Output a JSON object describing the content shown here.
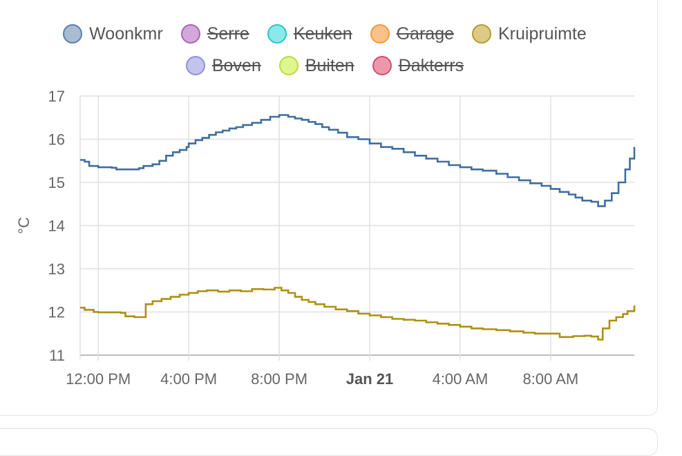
{
  "chart_data": {
    "type": "line",
    "ylabel": "°C",
    "ylim": [
      11,
      17
    ],
    "yticks": [
      "11",
      "12",
      "13",
      "14",
      "15",
      "16",
      "17"
    ],
    "x_range_hours": [
      -0.8,
      23.7
    ],
    "xticks": [
      {
        "label": "12:00 PM",
        "hour": 0,
        "bold": false
      },
      {
        "label": "4:00 PM",
        "hour": 4,
        "bold": false
      },
      {
        "label": "8:00 PM",
        "hour": 8,
        "bold": false
      },
      {
        "label": "Jan 21",
        "hour": 12,
        "bold": true
      },
      {
        "label": "4:00 AM",
        "hour": 16,
        "bold": false
      },
      {
        "label": "8:00 AM",
        "hour": 20,
        "bold": false
      }
    ],
    "grid": true,
    "legend_position": "top-center",
    "legend": [
      {
        "name": "Woonkmr",
        "color": "#5b7fa6",
        "fill": "#a8bcd3",
        "hidden": false
      },
      {
        "name": "Serre",
        "color": "#a765b6",
        "fill": "#d4a8dc",
        "hidden": true
      },
      {
        "name": "Keuken",
        "color": "#27c6cb",
        "fill": "#8ee8ea",
        "hidden": true
      },
      {
        "name": "Garage",
        "color": "#f39a3e",
        "fill": "#fbc189",
        "hidden": true
      },
      {
        "name": "Kruipruimte",
        "color": "#b69a2e",
        "fill": "#dcca87",
        "hidden": false
      },
      {
        "name": "Boven",
        "color": "#8f8fdc",
        "fill": "#c3c3ee",
        "hidden": true
      },
      {
        "name": "Buiten",
        "color": "#b9dd3a",
        "fill": "#dff58f",
        "hidden": true
      },
      {
        "name": "Dakterrs",
        "color": "#d04f6f",
        "fill": "#ec98ab",
        "hidden": true
      }
    ],
    "series": [
      {
        "name": "Woonkmr",
        "color": "#3f6d9e",
        "points": [
          [
            -0.8,
            15.52
          ],
          [
            -0.6,
            15.48
          ],
          [
            -0.4,
            15.38
          ],
          [
            0,
            15.35
          ],
          [
            0.6,
            15.34
          ],
          [
            0.8,
            15.3
          ],
          [
            1.6,
            15.3
          ],
          [
            1.8,
            15.33
          ],
          [
            2.0,
            15.38
          ],
          [
            2.4,
            15.42
          ],
          [
            2.7,
            15.5
          ],
          [
            3.0,
            15.62
          ],
          [
            3.3,
            15.7
          ],
          [
            3.6,
            15.75
          ],
          [
            3.9,
            15.82
          ],
          [
            4.0,
            15.9
          ],
          [
            4.3,
            15.98
          ],
          [
            4.6,
            16.03
          ],
          [
            4.9,
            16.1
          ],
          [
            5.2,
            16.16
          ],
          [
            5.5,
            16.2
          ],
          [
            5.8,
            16.25
          ],
          [
            6.1,
            16.28
          ],
          [
            6.4,
            16.33
          ],
          [
            6.8,
            16.38
          ],
          [
            7.2,
            16.45
          ],
          [
            7.6,
            16.52
          ],
          [
            8.0,
            16.56
          ],
          [
            8.4,
            16.52
          ],
          [
            8.7,
            16.48
          ],
          [
            9.0,
            16.45
          ],
          [
            9.3,
            16.4
          ],
          [
            9.6,
            16.35
          ],
          [
            9.9,
            16.28
          ],
          [
            10.2,
            16.22
          ],
          [
            10.6,
            16.15
          ],
          [
            11.0,
            16.05
          ],
          [
            11.5,
            16.0
          ],
          [
            12.0,
            15.9
          ],
          [
            12.5,
            15.82
          ],
          [
            13.0,
            15.78
          ],
          [
            13.5,
            15.7
          ],
          [
            14.0,
            15.62
          ],
          [
            14.5,
            15.55
          ],
          [
            15.0,
            15.48
          ],
          [
            15.5,
            15.4
          ],
          [
            16.0,
            15.35
          ],
          [
            16.5,
            15.3
          ],
          [
            17.0,
            15.27
          ],
          [
            17.6,
            15.2
          ],
          [
            18.1,
            15.12
          ],
          [
            18.6,
            15.05
          ],
          [
            19.1,
            14.98
          ],
          [
            19.6,
            14.92
          ],
          [
            20.0,
            14.85
          ],
          [
            20.4,
            14.78
          ],
          [
            20.8,
            14.72
          ],
          [
            21.1,
            14.65
          ],
          [
            21.4,
            14.58
          ],
          [
            21.8,
            14.55
          ],
          [
            22.1,
            14.45
          ],
          [
            22.4,
            14.58
          ],
          [
            22.7,
            14.75
          ],
          [
            23.0,
            15.0
          ],
          [
            23.3,
            15.3
          ],
          [
            23.5,
            15.55
          ],
          [
            23.7,
            15.82
          ]
        ]
      },
      {
        "name": "Kruipruimte",
        "color": "#ad8f12",
        "points": [
          [
            -0.8,
            12.1
          ],
          [
            -0.6,
            12.05
          ],
          [
            -0.2,
            12.0
          ],
          [
            0,
            11.99
          ],
          [
            1.0,
            11.98
          ],
          [
            1.2,
            11.9
          ],
          [
            1.6,
            11.88
          ],
          [
            2.0,
            11.88
          ],
          [
            2.1,
            12.18
          ],
          [
            2.4,
            12.25
          ],
          [
            2.8,
            12.3
          ],
          [
            3.2,
            12.35
          ],
          [
            3.6,
            12.4
          ],
          [
            4.0,
            12.44
          ],
          [
            4.4,
            12.48
          ],
          [
            4.8,
            12.5
          ],
          [
            5.3,
            12.47
          ],
          [
            5.8,
            12.5
          ],
          [
            6.3,
            12.48
          ],
          [
            6.8,
            12.53
          ],
          [
            7.3,
            12.52
          ],
          [
            7.8,
            12.56
          ],
          [
            8.1,
            12.5
          ],
          [
            8.4,
            12.44
          ],
          [
            8.7,
            12.35
          ],
          [
            9.0,
            12.28
          ],
          [
            9.3,
            12.23
          ],
          [
            9.6,
            12.18
          ],
          [
            10.0,
            12.12
          ],
          [
            10.5,
            12.06
          ],
          [
            11.0,
            12.02
          ],
          [
            11.5,
            11.96
          ],
          [
            12.0,
            11.92
          ],
          [
            12.5,
            11.88
          ],
          [
            13.0,
            11.84
          ],
          [
            13.5,
            11.82
          ],
          [
            14.0,
            11.8
          ],
          [
            14.5,
            11.76
          ],
          [
            15.0,
            11.73
          ],
          [
            15.5,
            11.7
          ],
          [
            16.0,
            11.66
          ],
          [
            16.5,
            11.62
          ],
          [
            17.0,
            11.6
          ],
          [
            17.6,
            11.58
          ],
          [
            18.2,
            11.55
          ],
          [
            18.8,
            11.52
          ],
          [
            19.3,
            11.5
          ],
          [
            19.9,
            11.5
          ],
          [
            20.4,
            11.42
          ],
          [
            21.0,
            11.44
          ],
          [
            21.5,
            11.45
          ],
          [
            21.8,
            11.43
          ],
          [
            22.1,
            11.36
          ],
          [
            22.3,
            11.62
          ],
          [
            22.6,
            11.8
          ],
          [
            22.9,
            11.88
          ],
          [
            23.2,
            11.95
          ],
          [
            23.4,
            12.02
          ],
          [
            23.7,
            12.15
          ]
        ]
      }
    ]
  }
}
